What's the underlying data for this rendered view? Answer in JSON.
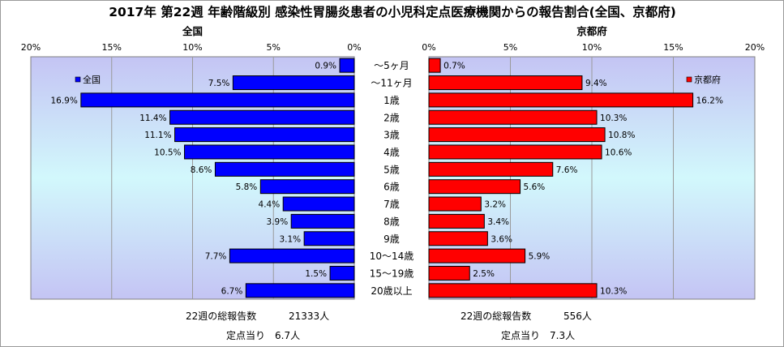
{
  "chart_data": {
    "type": "bar",
    "title": "2017年 第22週 年齢階級別 感染性胃腸炎患者の小児科定点医療機関からの報告割合(全国、京都府)",
    "categories": [
      "～5ヶ月",
      "～11ヶ月",
      "1歳",
      "2歳",
      "3歳",
      "4歳",
      "5歳",
      "6歳",
      "7歳",
      "8歳",
      "9歳",
      "10～14歳",
      "15～19歳",
      "20歳以上"
    ],
    "panels": [
      {
        "panel_title": "全国",
        "legend": "全国",
        "color": "#0000ff",
        "values": [
          0.9,
          7.5,
          16.9,
          11.4,
          11.1,
          10.5,
          8.6,
          5.8,
          4.4,
          3.9,
          3.1,
          7.7,
          1.5,
          6.7
        ],
        "value_labels": [
          "0.9%",
          "7.5%",
          "16.9%",
          "11.4%",
          "11.1%",
          "10.5%",
          "8.6%",
          "5.8%",
          "4.4%",
          "3.9%",
          "3.1%",
          "7.7%",
          "1.5%",
          "6.7%"
        ],
        "ticks": [
          "20%",
          "15%",
          "10%",
          "5%",
          "0%"
        ],
        "xlim": [
          0,
          20
        ],
        "reversed": true,
        "legend_position": "top-left",
        "notes": [
          {
            "label": "22週の総報告数",
            "value": "21333人"
          },
          {
            "label": "定点当り",
            "value": "6.7人"
          }
        ]
      },
      {
        "panel_title": "京都府",
        "legend": "京都府",
        "color": "#ff0000",
        "values": [
          0.7,
          9.4,
          16.2,
          10.3,
          10.8,
          10.6,
          7.6,
          5.6,
          3.2,
          3.4,
          3.6,
          5.9,
          2.5,
          10.3
        ],
        "value_labels": [
          "0.7%",
          "9.4%",
          "16.2%",
          "10.3%",
          "10.8%",
          "10.6%",
          "7.6%",
          "5.6%",
          "3.2%",
          "3.4%",
          "3.6%",
          "5.9%",
          "2.5%",
          "10.3%"
        ],
        "ticks": [
          "0%",
          "5%",
          "10%",
          "15%",
          "20%"
        ],
        "xlim": [
          0,
          20
        ],
        "reversed": false,
        "legend_position": "top-right",
        "notes": [
          {
            "label": "22週の総報告数",
            "value": "556人"
          },
          {
            "label": "定点当り",
            "value": "7.3人"
          }
        ]
      }
    ]
  }
}
